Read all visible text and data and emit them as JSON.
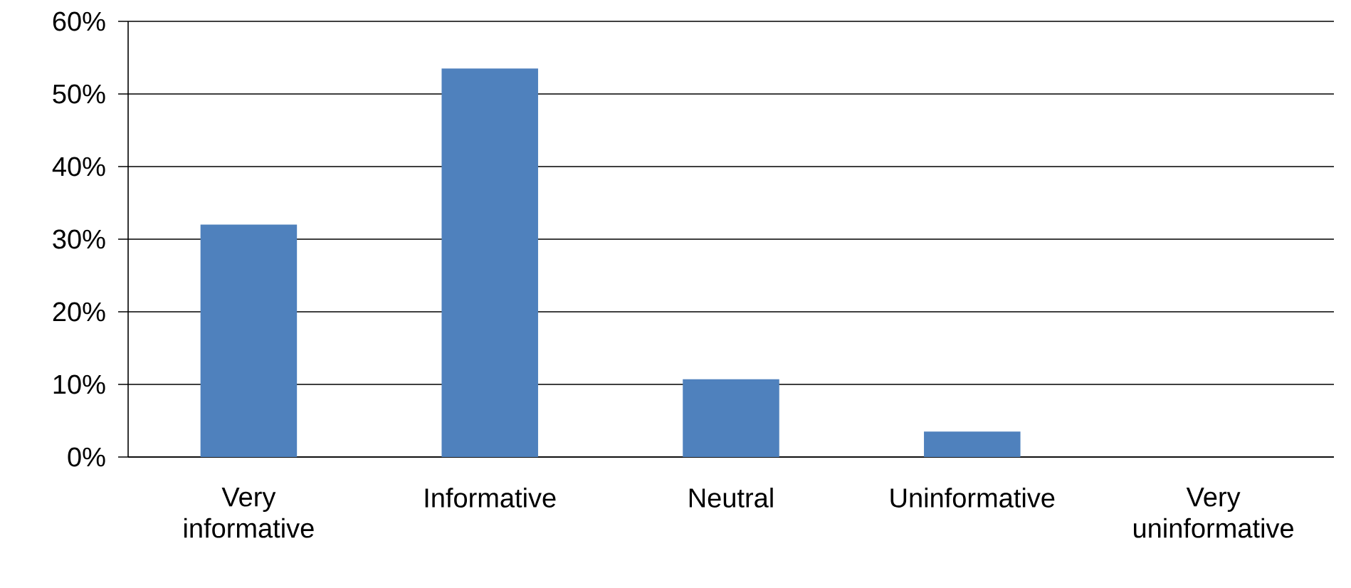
{
  "chart_data": {
    "type": "bar",
    "categories": [
      "Very informative",
      "Informative",
      "Neutral",
      "Uninformative",
      "Very uninformative"
    ],
    "values": [
      32,
      53.5,
      10.7,
      3.5,
      0
    ],
    "color": "#4f81bd",
    "ylim": [
      0,
      60
    ],
    "yticks": [
      {
        "value": 0,
        "label": "0%"
      },
      {
        "value": 10,
        "label": "10%"
      },
      {
        "value": 20,
        "label": "20%"
      },
      {
        "value": 30,
        "label": "30%"
      },
      {
        "value": 40,
        "label": "40%"
      },
      {
        "value": 50,
        "label": "50%"
      },
      {
        "value": 60,
        "label": "60%"
      }
    ],
    "grid": "y"
  }
}
